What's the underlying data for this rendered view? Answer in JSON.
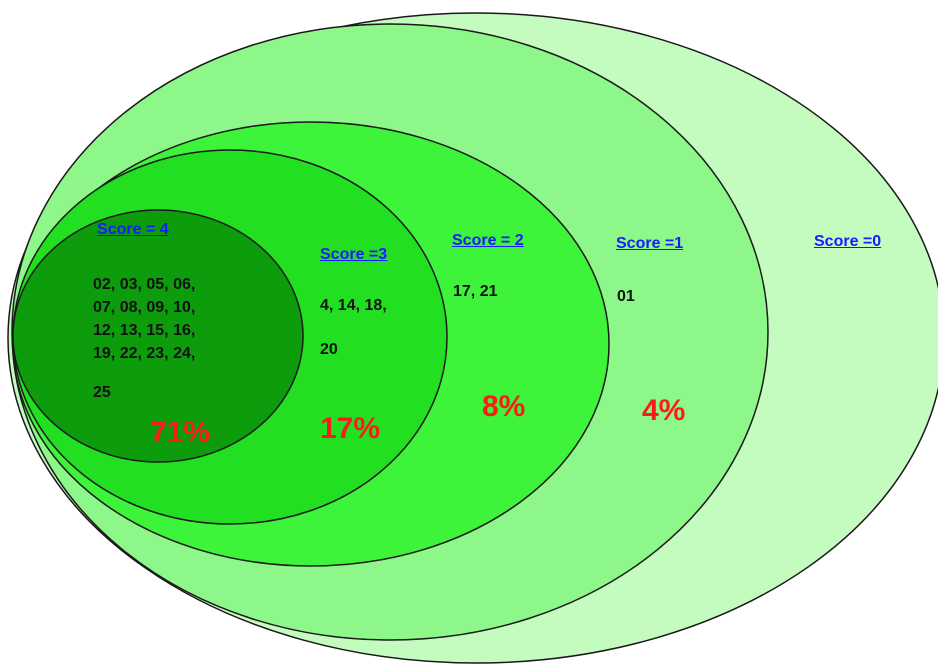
{
  "colors": {
    "ring_score_0": "#c4fcc0",
    "ring_score_1": "#8ef78a",
    "ring_score_2": "#3ef43a",
    "ring_score_3": "#22df22",
    "ring_score_4": "#0c9c0c",
    "outline": "#1a1a1a",
    "score_label": "#1a1aff",
    "percent_label": "#ff1a1a"
  },
  "groups": [
    {
      "score": "Score = 4",
      "members": [
        "02, 03, 05, 06,",
        "07, 08, 09, 10,",
        "12, 13, 15, 16,",
        "19, 22, 23, 24,",
        "",
        "25"
      ],
      "percent": "71%"
    },
    {
      "score": "Score =3",
      "members": [
        "4, 14, 18,",
        "",
        "20"
      ],
      "percent": "17%"
    },
    {
      "score": "Score = 2",
      "members": [
        "17, 21"
      ],
      "percent": "8%"
    },
    {
      "score": "Score =1",
      "members": [
        "01"
      ],
      "percent": "4%"
    },
    {
      "score": "Score =0",
      "members": [],
      "percent": ""
    }
  ]
}
